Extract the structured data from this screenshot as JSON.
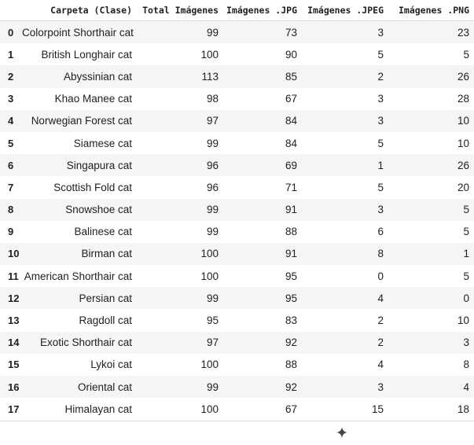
{
  "table": {
    "columns": [
      "",
      "Carpeta (Clase)",
      "Total Imágenes",
      "Imágenes .JPG",
      "Imágenes .JPEG",
      "Imágenes .PNG"
    ],
    "rows": [
      [
        "0",
        "Colorpoint Shorthair cat",
        "99",
        "73",
        "3",
        "23"
      ],
      [
        "1",
        "British Longhair cat",
        "100",
        "90",
        "5",
        "5"
      ],
      [
        "2",
        "Abyssinian cat",
        "113",
        "85",
        "2",
        "26"
      ],
      [
        "3",
        "Khao Manee cat",
        "98",
        "67",
        "3",
        "28"
      ],
      [
        "4",
        "Norwegian Forest cat",
        "97",
        "84",
        "3",
        "10"
      ],
      [
        "5",
        "Siamese cat",
        "99",
        "84",
        "5",
        "10"
      ],
      [
        "6",
        "Singapura cat",
        "96",
        "69",
        "1",
        "26"
      ],
      [
        "7",
        "Scottish Fold cat",
        "96",
        "71",
        "5",
        "20"
      ],
      [
        "8",
        "Snowshoe cat",
        "99",
        "91",
        "3",
        "5"
      ],
      [
        "9",
        "Balinese cat",
        "99",
        "88",
        "6",
        "5"
      ],
      [
        "10",
        "Birman cat",
        "100",
        "91",
        "8",
        "1"
      ],
      [
        "11",
        "American Shorthair cat",
        "100",
        "95",
        "0",
        "5"
      ],
      [
        "12",
        "Persian cat",
        "99",
        "95",
        "4",
        "0"
      ],
      [
        "13",
        "Ragdoll cat",
        "95",
        "83",
        "2",
        "10"
      ],
      [
        "14",
        "Exotic Shorthair cat",
        "97",
        "92",
        "2",
        "3"
      ],
      [
        "15",
        "Lykoi cat",
        "100",
        "88",
        "4",
        "8"
      ],
      [
        "16",
        "Oriental cat",
        "99",
        "92",
        "3",
        "4"
      ],
      [
        "17",
        "Himalayan cat",
        "100",
        "67",
        "15",
        "18"
      ]
    ]
  },
  "footer": {
    "icon": "sparkle-icon"
  }
}
